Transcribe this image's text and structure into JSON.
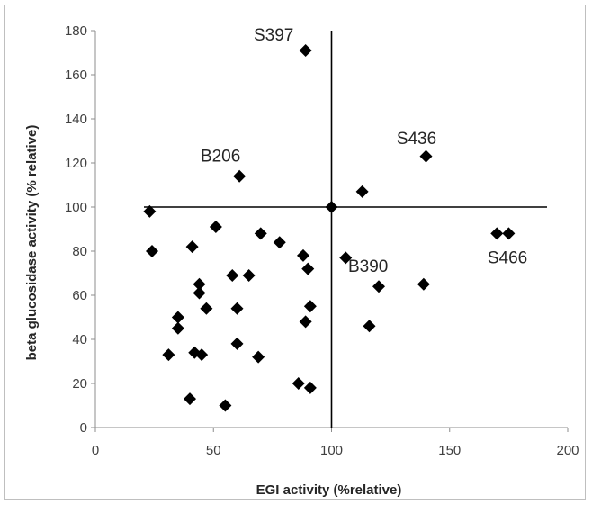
{
  "chart_data": {
    "type": "scatter",
    "xlabel": "EGI activity (%relative)",
    "ylabel": "beta glucosidase activity (% relative)",
    "xlim": [
      0,
      200
    ],
    "ylim": [
      0,
      180
    ],
    "xticks": [
      "0",
      "50",
      "100",
      "150",
      "200"
    ],
    "yticks": [
      "0",
      "20",
      "40",
      "60",
      "80",
      "100",
      "120",
      "140",
      "160",
      "180"
    ],
    "grid": false,
    "marker": "diamond",
    "marker_color": "#000000",
    "reference_lines": {
      "x": 100,
      "y": 100
    },
    "points": [
      {
        "x": 89,
        "y": 171
      },
      {
        "x": 140,
        "y": 123
      },
      {
        "x": 61,
        "y": 114
      },
      {
        "x": 113,
        "y": 107
      },
      {
        "x": 100,
        "y": 100
      },
      {
        "x": 23,
        "y": 98
      },
      {
        "x": 51,
        "y": 91
      },
      {
        "x": 170,
        "y": 88
      },
      {
        "x": 175,
        "y": 88
      },
      {
        "x": 70,
        "y": 88
      },
      {
        "x": 78,
        "y": 84
      },
      {
        "x": 41,
        "y": 82
      },
      {
        "x": 24,
        "y": 80
      },
      {
        "x": 88,
        "y": 78
      },
      {
        "x": 106,
        "y": 77
      },
      {
        "x": 90,
        "y": 72
      },
      {
        "x": 58,
        "y": 69
      },
      {
        "x": 65,
        "y": 69
      },
      {
        "x": 44,
        "y": 65
      },
      {
        "x": 120,
        "y": 64
      },
      {
        "x": 139,
        "y": 65
      },
      {
        "x": 44,
        "y": 61
      },
      {
        "x": 91,
        "y": 55
      },
      {
        "x": 47,
        "y": 54
      },
      {
        "x": 60,
        "y": 54
      },
      {
        "x": 35,
        "y": 50
      },
      {
        "x": 89,
        "y": 48
      },
      {
        "x": 116,
        "y": 46
      },
      {
        "x": 35,
        "y": 45
      },
      {
        "x": 60,
        "y": 38
      },
      {
        "x": 42,
        "y": 34
      },
      {
        "x": 31,
        "y": 33
      },
      {
        "x": 45,
        "y": 33
      },
      {
        "x": 69,
        "y": 32
      },
      {
        "x": 86,
        "y": 20
      },
      {
        "x": 91,
        "y": 18
      },
      {
        "x": 40,
        "y": 13
      },
      {
        "x": 55,
        "y": 10
      }
    ],
    "annotations": [
      {
        "text": "S397",
        "x": 75.5,
        "y": 178
      },
      {
        "text": "S436",
        "x": 136,
        "y": 131
      },
      {
        "text": "B206",
        "x": 53,
        "y": 123
      },
      {
        "text": "B390",
        "x": 115.5,
        "y": 73
      },
      {
        "text": "S466",
        "x": 174.5,
        "y": 77
      }
    ]
  }
}
